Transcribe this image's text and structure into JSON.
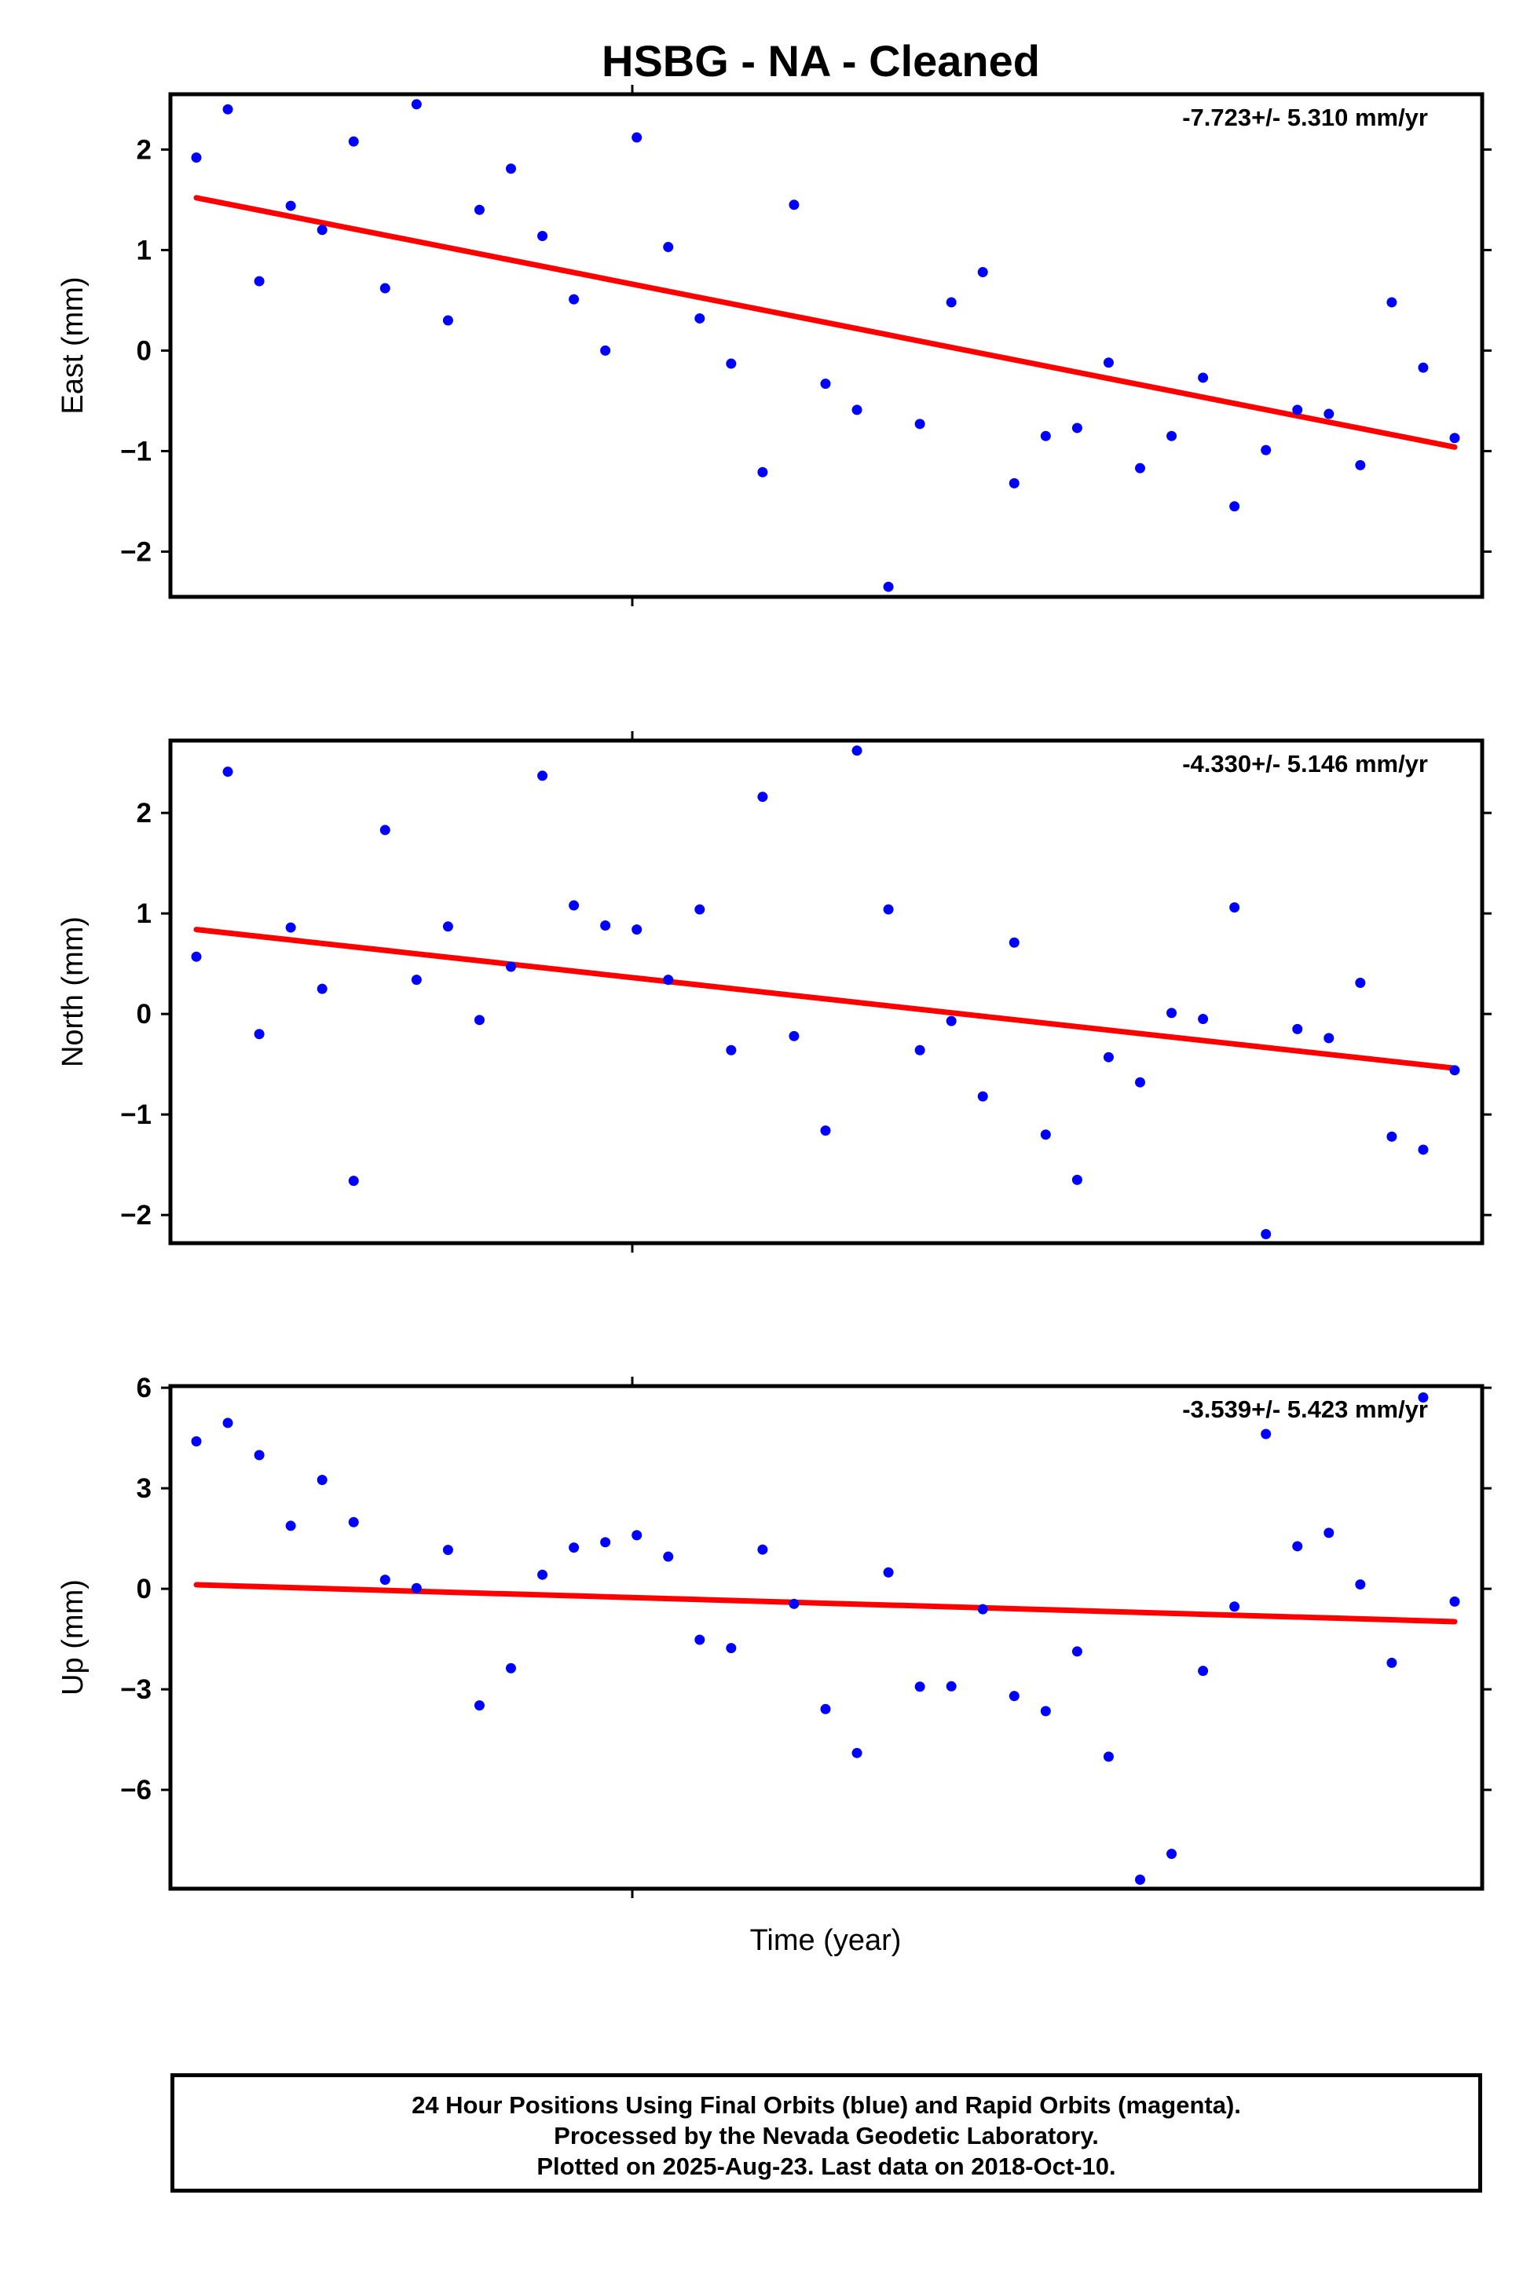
{
  "chart_data": {
    "title": "HSBG  - NA - Cleaned",
    "xlabel": "Time (year)",
    "type": "scatter",
    "panels": [
      {
        "ylabel": "East (mm)",
        "rate_label": "-7.723+/- 5.310 mm/yr",
        "ylim": [
          -2.45,
          2.55
        ],
        "yticks": [
          -2,
          -1,
          0,
          1,
          2
        ],
        "ytick_labels": [
          "−2",
          "−1",
          "0",
          "1",
          "2"
        ],
        "series": [
          {
            "name": "Final Orbits",
            "color": "#0000ff",
            "y": [
              1.92,
              2.4,
              0.69,
              1.44,
              1.2,
              2.08,
              0.62,
              2.45,
              0.3,
              1.4,
              1.81,
              1.14,
              0.51,
              0.0,
              2.12,
              1.03,
              0.32,
              -0.13,
              -1.21,
              1.45,
              -0.33,
              -0.59,
              -2.35,
              -0.73,
              0.48,
              0.78,
              -1.32,
              -0.85,
              -0.77,
              -0.12,
              -1.17,
              -0.85,
              -0.27,
              -1.55,
              -0.99,
              -0.59,
              -0.63,
              -1.14,
              0.48,
              -0.17,
              -0.87
            ]
          }
        ],
        "trend": {
          "y_start": 1.52,
          "y_end": -0.96,
          "color": "#ff0000"
        }
      },
      {
        "ylabel": "North (mm)",
        "rate_label": "-4.330+/- 5.146 mm/yr",
        "ylim": [
          -2.28,
          2.72
        ],
        "yticks": [
          -2,
          -1,
          0,
          1,
          2
        ],
        "ytick_labels": [
          "−2",
          "−1",
          "0",
          "1",
          "2"
        ],
        "series": [
          {
            "name": "Final Orbits",
            "color": "#0000ff",
            "y": [
              0.57,
              2.41,
              -0.2,
              0.86,
              0.25,
              -1.66,
              1.83,
              0.34,
              0.87,
              -0.06,
              0.47,
              2.37,
              1.08,
              0.88,
              0.84,
              0.34,
              1.04,
              -0.36,
              2.16,
              -0.22,
              -1.16,
              2.62,
              1.04,
              -0.36,
              -0.07,
              -0.82,
              0.71,
              -1.2,
              -1.65,
              -0.43,
              -0.68,
              0.01,
              -0.05,
              1.06,
              -2.19,
              -0.15,
              -0.24,
              0.31,
              -1.22,
              -1.35,
              -0.56
            ]
          }
        ],
        "trend": {
          "y_start": 0.84,
          "y_end": -0.54,
          "color": "#ff0000"
        }
      },
      {
        "ylabel": "Up (mm)",
        "rate_label": "-3.539+/- 5.423 mm/yr",
        "ylim": [
          -8.95,
          6.05
        ],
        "yticks": [
          -6,
          -3,
          0,
          3,
          6
        ],
        "ytick_labels": [
          "−6",
          "−3",
          "0",
          "3",
          "6"
        ],
        "series": [
          {
            "name": "Final Orbits",
            "color": "#0000ff",
            "y": [
              4.4,
              4.95,
              3.99,
              1.88,
              3.25,
              1.99,
              0.27,
              0.02,
              1.16,
              -3.48,
              -2.37,
              0.42,
              1.23,
              1.39,
              1.6,
              0.96,
              -1.52,
              -1.77,
              1.17,
              -0.45,
              -3.59,
              -4.9,
              0.49,
              -2.92,
              -2.91,
              -0.61,
              -3.2,
              -3.65,
              -1.87,
              -5.01,
              -8.68,
              -7.91,
              -2.45,
              -0.53,
              4.62,
              1.27,
              1.67,
              0.13,
              -2.21,
              5.71,
              -0.38
            ]
          }
        ],
        "trend": {
          "y_start": 0.12,
          "y_end": -0.98,
          "color": "#ff0000"
        }
      }
    ]
  },
  "footer": {
    "line1": "24 Hour Positions Using Final Orbits (blue) and Rapid Orbits (magenta).",
    "line2": "Processed by the Nevada Geodetic Laboratory.",
    "line3": "Plotted on 2025-Aug-23. Last data on 2018-Oct-10."
  }
}
